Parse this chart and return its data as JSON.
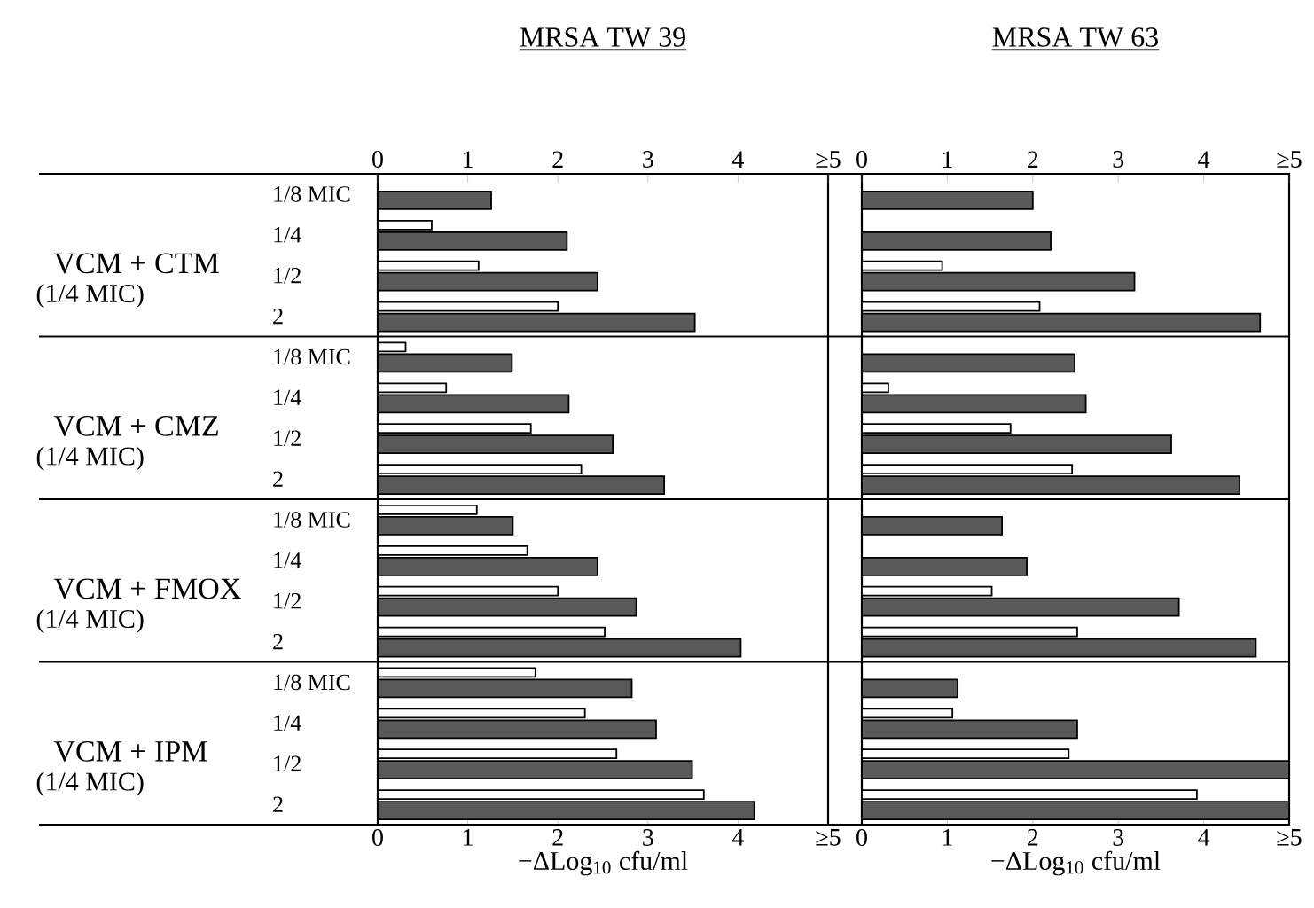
{
  "chart_data": [
    {
      "type": "bar",
      "orientation": "horizontal",
      "title": "MRSA  TW 39",
      "xlabel": "−ΔLog$_{10}$ cfu/ml",
      "categories": [
        "1/8 MIC",
        "1/4",
        "1/2",
        "2",
        "1/8 MIC",
        "1/4",
        "1/2",
        "2",
        "1/8 MIC",
        "1/4",
        "1/2",
        "2",
        "1/8 MIC",
        "1/4",
        "1/2",
        "2"
      ],
      "series": [
        {
          "color": "#ffffff",
          "values": [
            null,
            0.6,
            1.12,
            2.0,
            0.31,
            0.76,
            1.7,
            2.26,
            1.1,
            1.66,
            2.0,
            2.52,
            1.75,
            2.3,
            2.65,
            3.62
          ]
        },
        {
          "color": "#595959",
          "values": [
            1.26,
            2.1,
            2.44,
            3.52,
            1.49,
            2.12,
            2.61,
            3.18,
            1.5,
            2.44,
            2.87,
            4.03,
            2.82,
            3.09,
            3.49,
            4.18
          ]
        }
      ],
      "xlim": [
        0,
        5
      ],
      "xticks": [
        0,
        1,
        2,
        3,
        4,
        {
          "value": 5,
          "label": "≥5"
        }
      ],
      "x2lim": [
        0,
        5
      ],
      "x2ticks": [
        0,
        1,
        2,
        3,
        4,
        {
          "value": 5,
          "label": "≥5"
        }
      ],
      "annotations": [
        "VCM + CTM",
        "(1/4 MIC)",
        "VCM + CMZ",
        "(1/4 MIC)",
        "VCM + FMOX",
        "(1/4 MIC)",
        "VCM + IPM",
        "(1/4 MIC)"
      ]
    },
    {
      "type": "bar",
      "orientation": "horizontal",
      "title": "MRSA  TW 63",
      "xlabel": "−ΔLog$_{10}$ cfu/ml",
      "categories": [
        null,
        null,
        null,
        null,
        null,
        null,
        null,
        null,
        null,
        null,
        null,
        null,
        null,
        null,
        null,
        null
      ],
      "series": [
        {
          "color": "#ffffff",
          "values": [
            null,
            null,
            0.94,
            2.08,
            null,
            0.31,
            1.74,
            2.46,
            null,
            null,
            1.52,
            2.52,
            null,
            1.06,
            2.42,
            3.92
          ]
        },
        {
          "color": "#595959",
          "values": [
            2.0,
            2.21,
            3.19,
            4.66,
            2.49,
            2.62,
            3.62,
            4.42,
            1.64,
            1.93,
            3.71,
            4.61,
            1.12,
            2.52,
            5,
            5
          ]
        }
      ],
      "xlim": [
        0,
        5
      ],
      "xticks": [
        0,
        1,
        2,
        3,
        4,
        {
          "value": 5,
          "label": "≥5"
        }
      ],
      "x2lim": [
        0,
        5
      ],
      "x2ticks": [
        0,
        1,
        2,
        3,
        4,
        {
          "value": 5,
          "label": "≥5"
        }
      ],
      "tick_labels": "x"
    }
  ]
}
